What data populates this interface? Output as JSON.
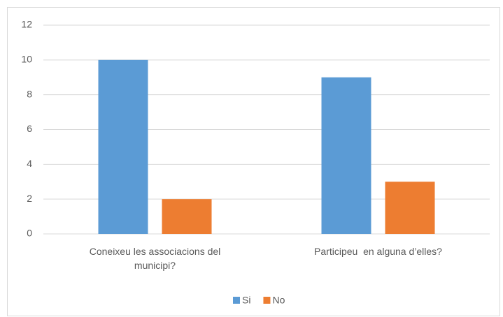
{
  "chart_data": {
    "type": "bar",
    "categories": [
      "Coneixeu les associacions del municipi?",
      "Participeu  en alguna d’elles?"
    ],
    "series": [
      {
        "name": "Si",
        "color": "#5b9bd5",
        "values": [
          10,
          9
        ]
      },
      {
        "name": "No",
        "color": "#ed7d31",
        "values": [
          2,
          3
        ]
      }
    ],
    "ylim": [
      0,
      12
    ],
    "yticks": [
      0,
      2,
      4,
      6,
      8,
      10,
      12
    ],
    "grid": true,
    "legend": "bottom"
  }
}
